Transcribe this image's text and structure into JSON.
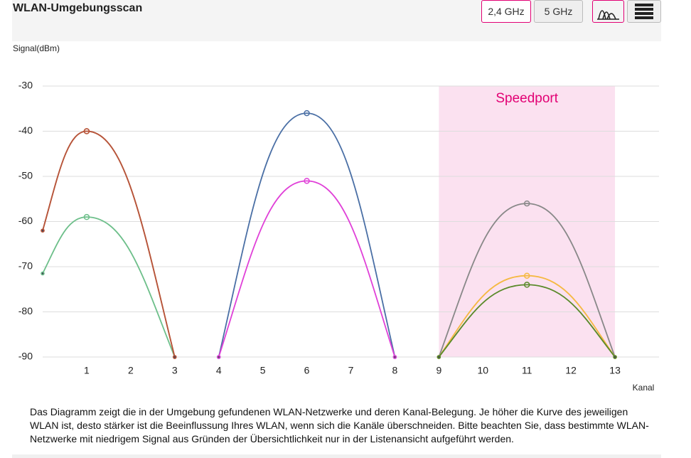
{
  "header": {
    "title": "WLAN-Umgebungsscan",
    "buttons": [
      "2,4 GHz",
      "5 GHz"
    ]
  },
  "chart_data": {
    "type": "line",
    "y_label": "Signal(dBm)",
    "x_label": "Kanal",
    "xlim": [
      0,
      14
    ],
    "ylim": [
      -90,
      -30
    ],
    "xticks": [
      1,
      2,
      3,
      4,
      5,
      6,
      7,
      8,
      9,
      10,
      11,
      12,
      13
    ],
    "yticks": [
      -30,
      -40,
      -50,
      -60,
      -70,
      -80,
      -90
    ],
    "grid": true,
    "highlight": {
      "label": "Speedport",
      "from": 9,
      "to": 13,
      "color": "#fbe1f0",
      "label_color": "#e20074"
    },
    "series": [
      {
        "color": "#6dbf8a",
        "x": [
          0,
          1,
          3
        ],
        "values": [
          -71.5,
          -59,
          -90
        ]
      },
      {
        "color": "#e08a3c",
        "x": [
          0,
          1,
          3
        ],
        "values": [
          -62,
          -40,
          -90
        ]
      },
      {
        "color": "#b5533c",
        "x": [
          0,
          1,
          3
        ],
        "values": [
          -62,
          -40,
          -90
        ]
      },
      {
        "color": "#4a6fa5",
        "x": [
          4,
          6,
          8
        ],
        "values": [
          -90,
          -36,
          -90
        ]
      },
      {
        "color": "#e040d8",
        "x": [
          4,
          6,
          8
        ],
        "values": [
          -90,
          -51,
          -90
        ]
      },
      {
        "color": "#888888",
        "x": [
          9,
          11,
          13
        ],
        "values": [
          -90,
          -56,
          -90
        ]
      },
      {
        "color": "#f5b942",
        "x": [
          9,
          11,
          13
        ],
        "values": [
          -90,
          -72,
          -90
        ]
      },
      {
        "color": "#5a8a2a",
        "x": [
          9,
          11,
          13
        ],
        "values": [
          -90,
          -74,
          -90
        ]
      }
    ]
  },
  "description": "Das Diagramm zeigt die in der Umgebung gefundenen WLAN-Netzwerke und deren Kanal-Belegung. Je höher die Kurve des jeweiligen WLAN ist, desto stärker ist die Beeinflussung Ihres WLAN, wenn sich die Kanäle überschneiden. Bitte beachten Sie, dass bestimmte WLAN-Netzwerke mit niedrigem Signal aus Gründen der Übersichtlichkeit nur in der Listenansicht aufgeführt werden."
}
